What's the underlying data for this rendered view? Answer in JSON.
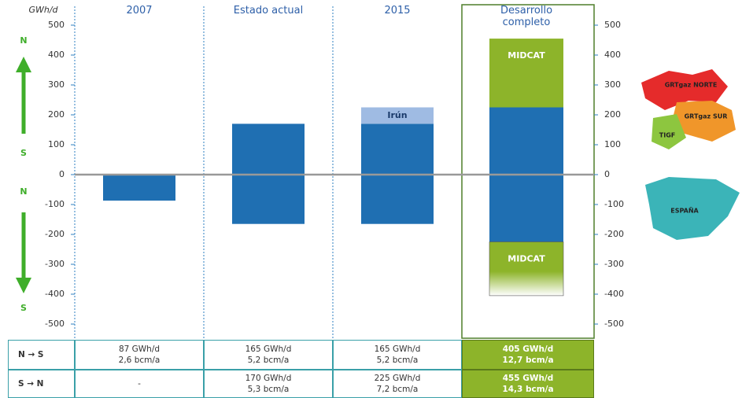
{
  "chart_data": {
    "type": "bar",
    "y_label": "GWh/d",
    "direction_labels": [
      "N",
      "S",
      "N",
      "S"
    ],
    "categories": [
      "2007",
      "Estado actual",
      "2015",
      "Desarrollo completo"
    ],
    "series": [
      {
        "color": "#1f6fb2",
        "values": [
          null,
          170,
          170,
          225
        ]
      },
      {
        "name": "Irún",
        "color": "#9fbbe3",
        "values": [
          null,
          null,
          55,
          null
        ]
      },
      {
        "name": "MIDCAT",
        "color": "#8db42a",
        "values": [
          null,
          null,
          null,
          230
        ]
      },
      {
        "color": "#1f6fb2",
        "values": [
          -87,
          -165,
          -165,
          -225
        ]
      },
      {
        "name": "MIDCAT",
        "color": "#8db42a",
        "values": [
          null,
          null,
          null,
          -180
        ]
      }
    ],
    "ylim": [
      -500,
      500
    ],
    "yticks": [
      -500,
      -400,
      -300,
      -200,
      -100,
      0,
      100,
      200,
      300,
      400,
      500
    ]
  },
  "table": {
    "rows": [
      {
        "label": "N → S",
        "cells": [
          [
            "87 GWh/d",
            "2,6 bcm/a"
          ],
          [
            "165 GWh/d",
            "5,2 bcm/a"
          ],
          [
            "165 GWh/d",
            "5,2 bcm/a"
          ],
          [
            "405 GWh/d",
            "12,7 bcm/a"
          ]
        ]
      },
      {
        "label": "S → N",
        "cells": [
          [
            "-"
          ],
          [
            "170 GWh/d",
            "5,3 bcm/a"
          ],
          [
            "225 GWh/d",
            "7,2 bcm/a"
          ],
          [
            "455 GWh/d",
            "14,3 bcm/a"
          ]
        ]
      }
    ]
  },
  "map_labels": [
    "GRTgaz NORTE",
    "GRTgaz SUR",
    "TIGF",
    "ESPAÑA"
  ]
}
